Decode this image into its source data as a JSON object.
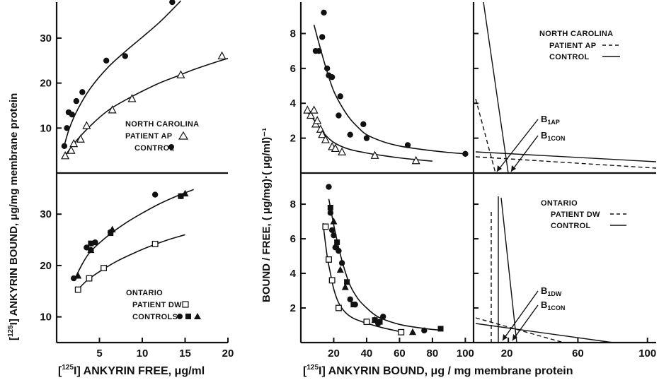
{
  "chart_data": [
    {
      "id": "a",
      "type": "scatter",
      "xlabel": "",
      "ylabel": "",
      "xlim": [
        0,
        20
      ],
      "ylim": [
        0,
        38
      ],
      "yticks": [
        10,
        20,
        30
      ],
      "legend": {
        "title": "NORTH CAROLINA",
        "entries": [
          "PATIENT AP",
          "CONTROL"
        ],
        "placement": "bottom-right"
      },
      "series": [
        {
          "name": "CONTROL",
          "marker": "filled-circle",
          "points": [
            [
              0.9,
              6
            ],
            [
              1.2,
              10
            ],
            [
              1.4,
              13.5
            ],
            [
              1.8,
              13
            ],
            [
              2.3,
              16
            ],
            [
              3,
              18
            ],
            [
              5.8,
              25
            ],
            [
              8,
              26
            ],
            [
              13.5,
              38
            ]
          ],
          "curve": [
            [
              0.8,
              5.5
            ],
            [
              1.5,
              10
            ],
            [
              2.5,
              14.3
            ],
            [
              4,
              19
            ],
            [
              6,
              23.5
            ],
            [
              8,
              27
            ],
            [
              10,
              30.2
            ],
            [
              12,
              33.5
            ],
            [
              14,
              37.3
            ],
            [
              14.5,
              38.3
            ]
          ]
        },
        {
          "name": "PATIENT AP",
          "marker": "open-triangle",
          "points": [
            [
              1,
              3.8
            ],
            [
              1.7,
              5
            ],
            [
              2,
              6.5
            ],
            [
              2.8,
              7.5
            ],
            [
              3.5,
              10.5
            ],
            [
              6.5,
              14
            ],
            [
              8.8,
              16.5
            ],
            [
              14.5,
              21.8
            ],
            [
              19.3,
              26
            ]
          ],
          "curve": [
            [
              0.9,
              3.5
            ],
            [
              2,
              6.5
            ],
            [
              4,
              10.6
            ],
            [
              6,
              13.9
            ],
            [
              8,
              16.2
            ],
            [
              10,
              18.2
            ],
            [
              12,
              20
            ],
            [
              14,
              21.5
            ],
            [
              16,
              23
            ],
            [
              18,
              24.3
            ],
            [
              20,
              25.5
            ]
          ]
        }
      ]
    },
    {
      "id": "b",
      "type": "scatter",
      "xlabel": "[125I] ANKYRIN FREE, μg/ml",
      "xlim": [
        0,
        20
      ],
      "ylim": [
        5,
        38
      ],
      "xticks": [
        5,
        10,
        15,
        20
      ],
      "yticks": [
        10,
        20,
        30
      ],
      "legend": {
        "title": "ONTARIO",
        "entries": [
          "PATIENT DW",
          "CONTROLS"
        ],
        "placement": "bottom"
      },
      "series": [
        {
          "name": "CONTROLS",
          "marker": "filled-circle",
          "points": [
            [
              2,
              17.5
            ],
            [
              3.5,
              23.5
            ],
            [
              4,
              23
            ],
            [
              4.5,
              24.5
            ],
            [
              6.3,
              26.5
            ],
            [
              11.5,
              33.8
            ],
            [
              14.5,
              33.5
            ]
          ]
        },
        {
          "name": "CONTROLS",
          "marker": "filled-square",
          "points": [
            [
              4,
              24.3
            ],
            [
              6.3,
              26.3
            ],
            [
              14.5,
              33.5
            ]
          ]
        },
        {
          "name": "CONTROLS",
          "marker": "filled-triangle",
          "points": [
            [
              2.5,
              18
            ],
            [
              4,
              23
            ],
            [
              6.5,
              27
            ],
            [
              15,
              34
            ]
          ],
          "curve": [
            [
              2,
              17
            ],
            [
              3,
              20.3
            ],
            [
              4,
              22.8
            ],
            [
              6,
              25.8
            ],
            [
              8,
              28.2
            ],
            [
              10,
              30.2
            ],
            [
              12,
              32
            ],
            [
              14,
              33.5
            ],
            [
              16,
              34.8
            ]
          ]
        },
        {
          "name": "PATIENT DW",
          "marker": "open-square",
          "points": [
            [
              2.5,
              15.3
            ],
            [
              3.8,
              17.5
            ],
            [
              5.5,
              19.5
            ],
            [
              11.5,
              24.2
            ]
          ],
          "curve": [
            [
              2.3,
              15
            ],
            [
              3.5,
              17
            ],
            [
              5,
              18.8
            ],
            [
              7,
              20.8
            ],
            [
              9,
              22.4
            ],
            [
              11,
              23.8
            ],
            [
              13,
              25
            ],
            [
              15,
              26
            ]
          ]
        }
      ]
    },
    {
      "id": "c",
      "type": "scatter",
      "ylabel": "BOUND / FREE, (μg/mg)·(μg/ml)⁻¹",
      "xlim": [
        0,
        105
      ],
      "ylim": [
        0,
        9.8
      ],
      "yticks": [
        2,
        4,
        6,
        8
      ],
      "series": [
        {
          "name": "CONTROL",
          "marker": "filled-circle",
          "points": [
            [
              9,
              7
            ],
            [
              11,
              7
            ],
            [
              13,
              7.8
            ],
            [
              14,
              9.2
            ],
            [
              16,
              6
            ],
            [
              17,
              5.6
            ],
            [
              19,
              5.5
            ],
            [
              23,
              3.3
            ],
            [
              24,
              4.4
            ],
            [
              30,
              2.2
            ],
            [
              38,
              2.8
            ],
            [
              40,
              2
            ],
            [
              65,
              1.6
            ],
            [
              100,
              1.1
            ]
          ],
          "curve": [
            [
              8,
              8.5
            ],
            [
              12,
              7.1
            ],
            [
              16,
              5.8
            ],
            [
              20,
              4.7
            ],
            [
              25,
              3.8
            ],
            [
              30,
              3.1
            ],
            [
              35,
              2.6
            ],
            [
              40,
              2.2
            ],
            [
              50,
              1.8
            ],
            [
              60,
              1.55
            ],
            [
              70,
              1.4
            ],
            [
              80,
              1.28
            ],
            [
              90,
              1.18
            ],
            [
              100,
              1.1
            ]
          ]
        },
        {
          "name": "PATIENT AP",
          "marker": "open-triangle",
          "points": [
            [
              4,
              3.6
            ],
            [
              6,
              3.3
            ],
            [
              8,
              3.6
            ],
            [
              9,
              2.8
            ],
            [
              10,
              3
            ],
            [
              12,
              2.5
            ],
            [
              13,
              2.2
            ],
            [
              15,
              1.9
            ],
            [
              19,
              1.5
            ],
            [
              21,
              1.4
            ],
            [
              25,
              1.2
            ],
            [
              45,
              1
            ],
            [
              70,
              0.7
            ]
          ],
          "curve": [
            [
              3,
              3.6
            ],
            [
              8,
              3.05
            ],
            [
              13,
              2.4
            ],
            [
              18,
              1.9
            ],
            [
              23,
              1.6
            ],
            [
              30,
              1.35
            ],
            [
              40,
              1.15
            ],
            [
              50,
              1
            ],
            [
              60,
              0.87
            ],
            [
              70,
              0.77
            ],
            [
              80,
              0.68
            ]
          ]
        }
      ]
    },
    {
      "id": "d",
      "type": "scatter",
      "xlabel": "[125I] ANKYRIN BOUND, μg/mg membrane protein",
      "xlim": [
        0,
        105
      ],
      "ylim": [
        0,
        9.8
      ],
      "xticks": [
        20,
        40,
        60,
        80,
        100
      ],
      "yticks": [
        2,
        4,
        6,
        8
      ],
      "series": [
        {
          "name": "CONTROLS",
          "marker": "filled-circle",
          "points": [
            [
              17,
              9
            ],
            [
              18,
              7.5
            ],
            [
              19,
              6.5
            ],
            [
              20,
              6.2
            ],
            [
              21,
              5.5
            ],
            [
              23,
              5.3
            ],
            [
              25,
              4.6
            ],
            [
              30,
              2.5
            ],
            [
              33,
              2.2
            ],
            [
              47,
              1.1
            ],
            [
              50,
              1.5
            ],
            [
              75,
              0.7
            ]
          ]
        },
        {
          "name": "CONTROLS",
          "marker": "filled-square",
          "points": [
            [
              18,
              7.8
            ],
            [
              22,
              5.8
            ],
            [
              28,
              3.5
            ],
            [
              32,
              2.2
            ],
            [
              45,
              1.3
            ],
            [
              48,
              1.2
            ],
            [
              85,
              0.8
            ]
          ]
        },
        {
          "name": "CONTROLS",
          "marker": "filled-triangle",
          "points": [
            [
              20,
              7
            ],
            [
              24,
              4.2
            ],
            [
              27,
              3.2
            ],
            [
              45,
              1.3
            ],
            [
              68,
              0.6
            ]
          ],
          "curve": [
            [
              17,
              8.3
            ],
            [
              20,
              6.8
            ],
            [
              23,
              5.5
            ],
            [
              26,
              4.4
            ],
            [
              30,
              3.3
            ],
            [
              35,
              2.5
            ],
            [
              40,
              2
            ],
            [
              45,
              1.6
            ],
            [
              50,
              1.35
            ],
            [
              60,
              1.05
            ],
            [
              70,
              0.88
            ],
            [
              80,
              0.76
            ],
            [
              85,
              0.72
            ]
          ]
        },
        {
          "name": "PATIENT DW",
          "marker": "open-square",
          "points": [
            [
              15,
              6.7
            ],
            [
              17,
              4.8
            ],
            [
              19,
              3.6
            ],
            [
              23,
              2
            ],
            [
              40,
              1.2
            ],
            [
              61,
              0.6
            ]
          ],
          "curve": [
            [
              13.5,
              6.9
            ],
            [
              16,
              5
            ],
            [
              18,
              4
            ],
            [
              20,
              3.1
            ],
            [
              23,
              2.3
            ],
            [
              27,
              1.75
            ],
            [
              32,
              1.4
            ],
            [
              40,
              1.12
            ],
            [
              50,
              0.85
            ],
            [
              62,
              0.6
            ]
          ]
        }
      ]
    }
  ],
  "scatchard": [
    {
      "legend": {
        "title": "NORTH CAROLINA",
        "entries": [
          "PATIENT AP",
          "CONTROL"
        ],
        "styles": [
          "dashed",
          "solid"
        ]
      },
      "labels": [
        {
          "main": "B",
          "sub": "1AP"
        },
        {
          "main": "B",
          "sub": "1CON"
        }
      ]
    },
    {
      "legend": {
        "title": "ONTARIO",
        "entries": [
          "PATIENT DW",
          "CONTROL"
        ],
        "styles": [
          "dashed",
          "solid"
        ]
      },
      "labels": [
        {
          "main": "B",
          "sub": "1DW"
        },
        {
          "main": "B",
          "sub": "1CON"
        }
      ],
      "xticks": [
        20,
        60,
        100
      ]
    }
  ],
  "left_ylabel": {
    "prefix": "[",
    "sup": "125",
    "iso": "I]",
    "rest": " ANKYRIN BOUND, μg/mg membrane protein"
  },
  "bottom_labels": {
    "left": {
      "prefix": "[",
      "sup": "125",
      "iso": "I]",
      "rest": " ANKYRIN FREE, μg/ml"
    },
    "right": {
      "prefix": "[",
      "sup": "125",
      "iso": "I]",
      "rest": " ANKYRIN BOUND, μg / mg membrane protein"
    }
  },
  "center_ylabel": "BOUND / FREE, ( μg/mg)·( μg/ml)⁻¹"
}
